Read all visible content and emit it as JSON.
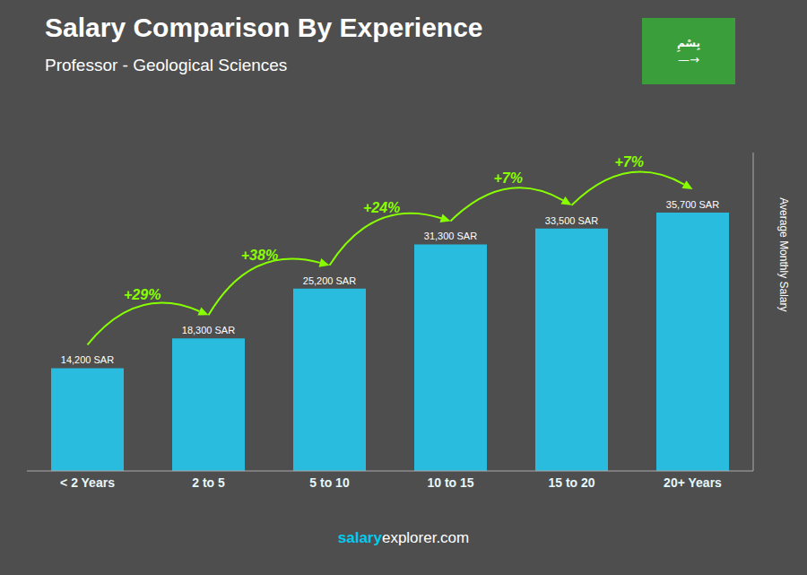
{
  "chart_data": {
    "type": "bar",
    "title": "Salary Comparison By Experience",
    "subtitle": "Professor - Geological Sciences",
    "ylabel": "Average Monthly Salary",
    "categories": [
      "< 2 Years",
      "2 to 5",
      "5 to 10",
      "10 to 15",
      "15 to 20",
      "20+ Years"
    ],
    "values": [
      14200,
      18300,
      25200,
      31300,
      33500,
      35700
    ],
    "value_labels": [
      "14,200 SAR",
      "18,300 SAR",
      "25,200 SAR",
      "31,300 SAR",
      "33,500 SAR",
      "35,700 SAR"
    ],
    "color": "#29bcde",
    "ylim": [
      0,
      44000
    ],
    "grid": false,
    "data_labels": true,
    "tick_labels": "x",
    "annotations": [
      {
        "text": "+29%",
        "from": "< 2 Years",
        "to": "2 to 5",
        "color": "#88ff00"
      },
      {
        "text": "+38%",
        "from": "2 to 5",
        "to": "5 to 10",
        "color": "#88ff00"
      },
      {
        "text": "+24%",
        "from": "5 to 10",
        "to": "10 to 15",
        "color": "#88ff00"
      },
      {
        "text": "+7%",
        "from": "10 to 15",
        "to": "15 to 20",
        "color": "#88ff00"
      },
      {
        "text": "+7%",
        "from": "15 to 20",
        "to": "20+ Years",
        "color": "#88ff00"
      },
      {
        "text": "salary",
        "color": "#00ccee"
      },
      {
        "text": "explorer.com",
        "color": "#ffffff"
      },
      {
        "text": "بِسْمِ",
        "background": "#3a9e3a"
      },
      {
        "text": "—→",
        "background": "#3a9e3a"
      }
    ]
  }
}
